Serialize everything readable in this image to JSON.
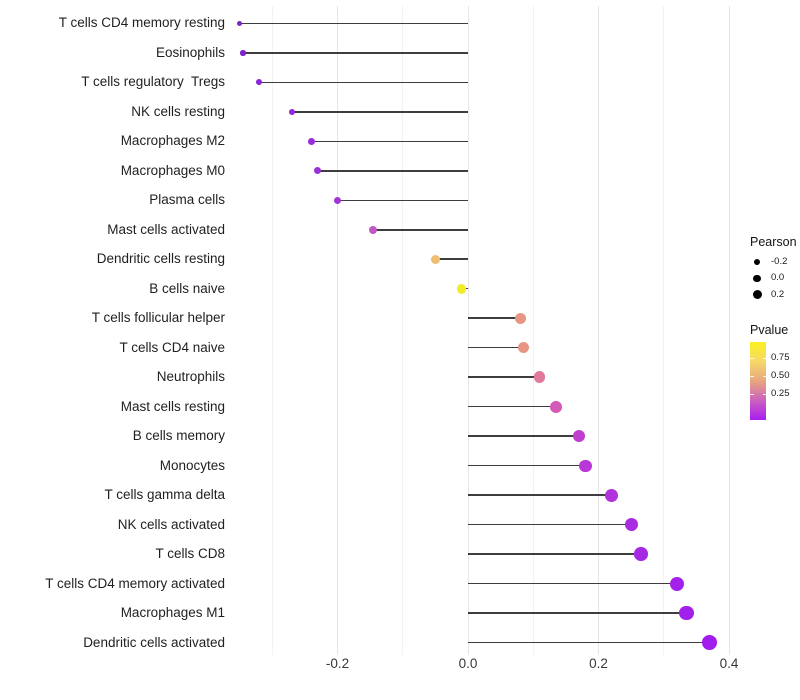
{
  "chart_data": {
    "type": "scatter",
    "variant": "lollipop",
    "title": "",
    "xlabel": "",
    "ylabel": "",
    "xlim": [
      -0.38,
      0.41
    ],
    "x_tick_labels": [
      "-0.2",
      "0.0",
      "0.2",
      "0.4"
    ],
    "x_ticks_major": [
      -0.2,
      0.0,
      0.2,
      0.4
    ],
    "x_ticks_minor": [
      -0.3,
      -0.1,
      0.1,
      0.3
    ],
    "grid": "vertical-only",
    "legend_position": "right",
    "points": [
      {
        "label": "T cells CD4 memory resting",
        "pearson": -0.35,
        "color": "#7e22cc"
      },
      {
        "label": "Eosinophils",
        "pearson": -0.345,
        "color": "#7e22cc"
      },
      {
        "label": "T cells regulatory  Tregs",
        "pearson": -0.32,
        "color": "#8a26d8"
      },
      {
        "label": "NK cells resting",
        "pearson": -0.27,
        "color": "#9129dc"
      },
      {
        "label": "Macrophages M2",
        "pearson": -0.24,
        "color": "#982eda"
      },
      {
        "label": "Macrophages M0",
        "pearson": -0.23,
        "color": "#9a30da"
      },
      {
        "label": "Plasma cells",
        "pearson": -0.2,
        "color": "#a136d6"
      },
      {
        "label": "Mast cells activated",
        "pearson": -0.145,
        "color": "#c058c5"
      },
      {
        "label": "Dendritic cells resting",
        "pearson": -0.05,
        "color": "#efbe70"
      },
      {
        "label": "B cells naive",
        "pearson": -0.01,
        "color": "#f2ec28"
      },
      {
        "label": "T cells follicular helper",
        "pearson": 0.08,
        "color": "#e89583"
      },
      {
        "label": "T cells CD4 naive",
        "pearson": 0.085,
        "color": "#e89583"
      },
      {
        "label": "Neutrophils",
        "pearson": 0.11,
        "color": "#df7a9c"
      },
      {
        "label": "Mast cells resting",
        "pearson": 0.135,
        "color": "#d35ab7"
      },
      {
        "label": "B cells memory",
        "pearson": 0.17,
        "color": "#be3fce"
      },
      {
        "label": "Monocytes",
        "pearson": 0.18,
        "color": "#b937d6"
      },
      {
        "label": "T cells gamma delta",
        "pearson": 0.22,
        "color": "#b232dc"
      },
      {
        "label": "NK cells activated",
        "pearson": 0.25,
        "color": "#a92be2"
      },
      {
        "label": "T cells CD8",
        "pearson": 0.265,
        "color": "#a628e5"
      },
      {
        "label": "T cells CD4 memory activated",
        "pearson": 0.32,
        "color": "#a321ea"
      },
      {
        "label": "Macrophages M1",
        "pearson": 0.335,
        "color": "#a120ec"
      },
      {
        "label": "Dendritic cells activated",
        "pearson": 0.37,
        "color": "#a21cee"
      }
    ]
  },
  "legend": {
    "size": {
      "title": "Pearson",
      "entries": [
        {
          "label": "-0.2",
          "diameter": 6
        },
        {
          "label": "0.0",
          "diameter": 7.5
        },
        {
          "label": "0.2",
          "diameter": 9
        }
      ]
    },
    "color": {
      "title": "Pvalue",
      "tick_labels": [
        "0.75",
        "0.50",
        "0.25"
      ],
      "tick_values": [
        0.75,
        0.5,
        0.25
      ],
      "gradient_top_to_bottom": [
        "#faf21f",
        "#f6d869",
        "#e8a67e",
        "#cb61be",
        "#a81ef0"
      ]
    }
  }
}
